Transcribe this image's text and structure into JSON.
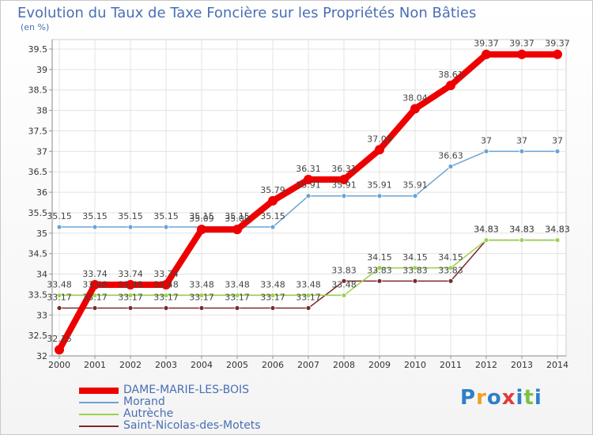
{
  "chart_data": {
    "type": "line",
    "title": "Evolution du Taux de Taxe Foncière sur les Propriétés Non Bâties",
    "ylabel": "(en %)",
    "xlabel": "",
    "x": [
      "2000",
      "2001",
      "2002",
      "2003",
      "2004",
      "2005",
      "2006",
      "2007",
      "2008",
      "2009",
      "2010",
      "2011",
      "2012",
      "2013",
      "2014"
    ],
    "ylim": [
      32,
      39.5
    ],
    "yticks": [
      "32",
      "32.5",
      "33",
      "33.5",
      "34",
      "34.5",
      "35",
      "35.5",
      "36",
      "36.5",
      "37",
      "37.5",
      "38",
      "38.5",
      "39",
      "39.5"
    ],
    "grid": true,
    "legend_position": "bottom-left",
    "series": [
      {
        "name": "DAME-MARIE-LES-BOIS",
        "color": "#ee0000",
        "values": [
          32.15,
          33.74,
          33.74,
          33.74,
          35.09,
          35.09,
          35.79,
          36.31,
          36.31,
          37.04,
          38.04,
          38.61,
          39.37,
          39.37,
          39.37
        ],
        "labels": [
          "32.15",
          "33.74",
          "33.74",
          "33.74",
          "35.09",
          "35.09",
          "35.79",
          "36.31",
          "36.31",
          "37.04",
          "38.04",
          "38.61",
          "39.37",
          "39.37",
          "39.37"
        ]
      },
      {
        "name": "Morand",
        "color": "#6aa3d5",
        "values": [
          35.15,
          35.15,
          35.15,
          35.15,
          35.15,
          35.15,
          35.15,
          35.91,
          35.91,
          35.91,
          35.91,
          36.63,
          37,
          37,
          37
        ],
        "labels": [
          "35.15",
          "35.15",
          "35.15",
          "35.15",
          "35.15",
          "35.15",
          "35.15",
          "35.91",
          "35.91",
          "35.91",
          "35.91",
          "36.63",
          "37",
          "37",
          "37"
        ]
      },
      {
        "name": "Autrèche",
        "color": "#99d44a",
        "values": [
          33.48,
          33.48,
          33.48,
          33.48,
          33.48,
          33.48,
          33.48,
          33.48,
          33.48,
          34.15,
          34.15,
          34.15,
          34.83,
          34.83,
          34.83
        ],
        "labels": [
          "33.48",
          "33.48",
          "33.48",
          "33.48",
          "33.48",
          "33.48",
          "33.48",
          "33.48",
          "33.48",
          "34.15",
          "34.15",
          "34.15",
          "34.83",
          "34.83",
          "34.83"
        ]
      },
      {
        "name": "Saint-Nicolas-des-Motets",
        "color": "#7a2a2a",
        "values": [
          33.17,
          33.17,
          33.17,
          33.17,
          33.17,
          33.17,
          33.17,
          33.17,
          33.83,
          33.83,
          33.83,
          33.83,
          34.83,
          34.83,
          34.83
        ],
        "labels": [
          "33.17",
          "33.17",
          "33.17",
          "33.17",
          "33.17",
          "33.17",
          "33.17",
          "33.17",
          "33.83",
          "33.83",
          "33.83",
          "33.83",
          "34.83",
          "34.83",
          "34.83"
        ]
      }
    ]
  },
  "legend": {
    "items": [
      "DAME-MARIE-LES-BOIS",
      "Morand",
      "Autrèche",
      "Saint-Nicolas-des-Motets"
    ]
  },
  "logo": {
    "letters": [
      "P",
      "r",
      "o",
      "x",
      "i",
      "t",
      "i"
    ],
    "colors": [
      "#2f7fc8",
      "#f0a020",
      "#2f7fc8",
      "#e23a3a",
      "#2f7fc8",
      "#7cc242",
      "#2f7fc8"
    ]
  }
}
